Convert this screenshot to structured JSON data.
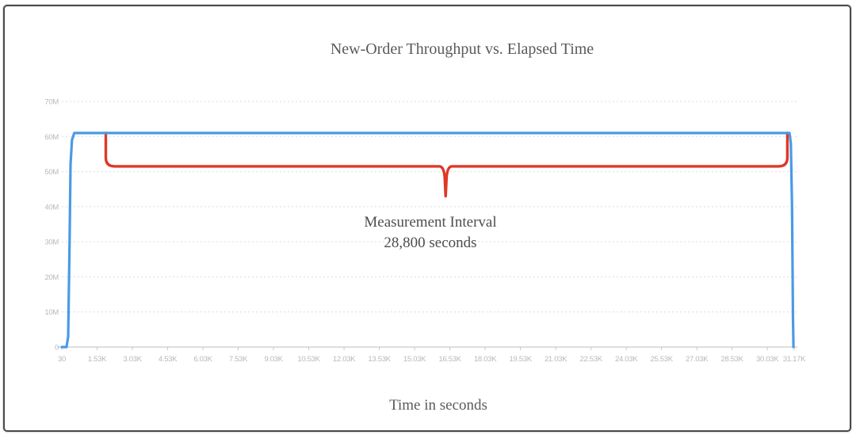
{
  "frame": {
    "border_color": "#4a4a4a",
    "background": "#ffffff"
  },
  "styles": {
    "axis_label_color": "#b5b9bd",
    "grid_color": "#dcdcdc",
    "axis_line_color": "#c6c9cc",
    "title_color": "#5a5a5a",
    "annotation_color": "#4d4d4d"
  },
  "chart_data": {
    "type": "line",
    "title": "New-Order Throughput vs. Elapsed Time",
    "xlabel": "Time in seconds",
    "ylabel": "",
    "grid": "horizontal-dashed",
    "legend": "none",
    "xlim_seconds": [
      30,
      31170
    ],
    "ylim": [
      0,
      70000000
    ],
    "x_ticks_seconds": [
      30,
      1530,
      3030,
      4530,
      6030,
      7530,
      9030,
      10530,
      12030,
      13530,
      15030,
      16530,
      18030,
      19530,
      21030,
      22530,
      24030,
      25530,
      27030,
      28530,
      30030,
      31170
    ],
    "x_tick_labels": [
      "30",
      "1.53K",
      "3.03K",
      "4.53K",
      "6.03K",
      "7.53K",
      "9.03K",
      "10.53K",
      "12.03K",
      "13.53K",
      "15.03K",
      "16.53K",
      "18.03K",
      "19.53K",
      "21.03K",
      "22.53K",
      "24.03K",
      "25.53K",
      "27.03K",
      "28.53K",
      "30.03K",
      "31.17K"
    ],
    "y_ticks_millions": [
      0,
      10,
      20,
      30,
      40,
      50,
      60,
      70
    ],
    "y_tick_labels": [
      "0",
      "10M",
      "20M",
      "30M",
      "40M",
      "50M",
      "60M",
      "70M"
    ],
    "series": [
      {
        "name": "new-order-throughput",
        "color": "#4a9ae6",
        "points_seconds_millions": [
          [
            30,
            0
          ],
          [
            230,
            0
          ],
          [
            300,
            3
          ],
          [
            360,
            30
          ],
          [
            400,
            52
          ],
          [
            460,
            59
          ],
          [
            560,
            61
          ],
          [
            30870,
            61
          ],
          [
            30970,
            61
          ],
          [
            31030,
            58
          ],
          [
            31080,
            40
          ],
          [
            31120,
            8
          ],
          [
            31140,
            0
          ]
        ]
      }
    ],
    "annotation": {
      "label_line1": "Measurement Interval",
      "label_line2": "28,800 seconds",
      "brace_color": "#df3826",
      "brace_start_seconds": 1900,
      "brace_end_seconds": 30880,
      "brace_top_millions": 61,
      "brace_bar_millions": 51.5,
      "brace_tip_seconds": 16350,
      "brace_tip_millions": 43
    }
  }
}
